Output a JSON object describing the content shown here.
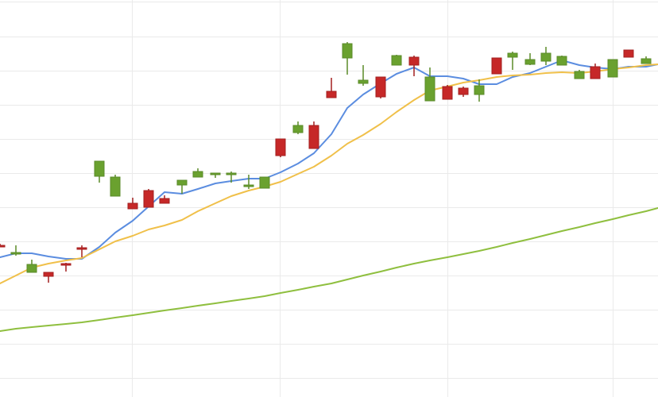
{
  "chart_data": {
    "type": "candlestick",
    "title": "",
    "xlabel": "",
    "ylabel": "",
    "ylim": [
      0,
      500
    ],
    "grid": true,
    "colors": {
      "up": "#6aa12f",
      "down": "#c62828",
      "ma_fast": "#5b8de0",
      "ma_medium": "#f0c04a",
      "ma_slow": "#8fbf3f",
      "grid": "#eaeaea"
    },
    "candles": [
      {
        "x": 0,
        "open": 191,
        "close": 189,
        "high": 193,
        "low": 189
      },
      {
        "x": 20,
        "open": 180,
        "close": 182,
        "high": 191,
        "low": 178
      },
      {
        "x": 40,
        "open": 157,
        "close": 167,
        "high": 173,
        "low": 157
      },
      {
        "x": 61,
        "open": 157,
        "close": 152,
        "high": 157,
        "low": 144
      },
      {
        "x": 83,
        "open": 168,
        "close": 166,
        "high": 169,
        "low": 158
      },
      {
        "x": 103,
        "open": 188,
        "close": 186,
        "high": 191,
        "low": 176
      },
      {
        "x": 125,
        "open": 278,
        "close": 297,
        "high": 297,
        "low": 270
      },
      {
        "x": 145,
        "open": 253,
        "close": 277,
        "high": 280,
        "low": 253
      },
      {
        "x": 167,
        "open": 244,
        "close": 237,
        "high": 251,
        "low": 237
      },
      {
        "x": 187,
        "open": 260,
        "close": 239,
        "high": 262,
        "low": 239
      },
      {
        "x": 207,
        "open": 250,
        "close": 244,
        "high": 254,
        "low": 244
      },
      {
        "x": 229,
        "open": 267,
        "close": 273,
        "high": 273,
        "low": 256
      },
      {
        "x": 249,
        "open": 277,
        "close": 284,
        "high": 288,
        "low": 277
      },
      {
        "x": 271,
        "open": 280,
        "close": 282,
        "high": 282,
        "low": 276
      },
      {
        "x": 291,
        "open": 280,
        "close": 282,
        "high": 284,
        "low": 270
      },
      {
        "x": 313,
        "open": 265,
        "close": 267,
        "high": 280,
        "low": 262
      },
      {
        "x": 333,
        "open": 263,
        "close": 277,
        "high": 277,
        "low": 263
      },
      {
        "x": 353,
        "open": 325,
        "close": 304,
        "high": 325,
        "low": 302
      },
      {
        "x": 375,
        "open": 333,
        "close": 342,
        "high": 347,
        "low": 331
      },
      {
        "x": 395,
        "open": 342,
        "close": 313,
        "high": 347,
        "low": 313
      },
      {
        "x": 417,
        "open": 385,
        "close": 377,
        "high": 402,
        "low": 377
      },
      {
        "x": 437,
        "open": 427,
        "close": 445,
        "high": 447,
        "low": 406
      },
      {
        "x": 457,
        "open": 395,
        "close": 399,
        "high": 418,
        "low": 392
      },
      {
        "x": 479,
        "open": 403,
        "close": 378,
        "high": 403,
        "low": 376
      },
      {
        "x": 499,
        "open": 418,
        "close": 430,
        "high": 431,
        "low": 418
      },
      {
        "x": 521,
        "open": 428,
        "close": 418,
        "high": 430,
        "low": 404
      },
      {
        "x": 541,
        "open": 373,
        "close": 403,
        "high": 415,
        "low": 373
      },
      {
        "x": 563,
        "open": 391,
        "close": 375,
        "high": 393,
        "low": 375
      },
      {
        "x": 583,
        "open": 389,
        "close": 381,
        "high": 391,
        "low": 378
      },
      {
        "x": 603,
        "open": 381,
        "close": 392,
        "high": 400,
        "low": 372
      },
      {
        "x": 625,
        "open": 427,
        "close": 407,
        "high": 427,
        "low": 407
      },
      {
        "x": 645,
        "open": 428,
        "close": 433,
        "high": 435,
        "low": 412
      },
      {
        "x": 667,
        "open": 419,
        "close": 425,
        "high": 433,
        "low": 418
      },
      {
        "x": 687,
        "open": 423,
        "close": 433,
        "high": 441,
        "low": 418
      },
      {
        "x": 707,
        "open": 418,
        "close": 429,
        "high": 430,
        "low": 418
      },
      {
        "x": 729,
        "open": 401,
        "close": 410,
        "high": 412,
        "low": 401
      },
      {
        "x": 749,
        "open": 416,
        "close": 401,
        "high": 420,
        "low": 401
      },
      {
        "x": 771,
        "open": 403,
        "close": 425,
        "high": 425,
        "low": 403
      },
      {
        "x": 791,
        "open": 437,
        "close": 428,
        "high": 437,
        "low": 428
      },
      {
        "x": 813,
        "open": 420,
        "close": 426,
        "high": 429,
        "low": 420
      }
    ],
    "series": [
      {
        "key": "ma_fast",
        "x": [
          0,
          20,
          40,
          61,
          83,
          103,
          125,
          145,
          167,
          187,
          207,
          229,
          249,
          271,
          291,
          313,
          333,
          353,
          375,
          395,
          417,
          437,
          457,
          479,
          499,
          521,
          541,
          563,
          583,
          603,
          625,
          645,
          667,
          687,
          707,
          729,
          749,
          771,
          791,
          813,
          828
        ],
        "values": [
          176,
          181,
          181,
          177,
          174,
          174,
          189,
          207,
          222,
          240,
          258,
          256,
          262,
          269,
          272,
          275,
          275,
          283,
          294,
          307,
          331,
          364,
          381,
          395,
          407,
          415,
          404,
          404,
          401,
          394,
          394,
          403,
          408,
          416,
          424,
          418,
          415,
          413,
          416,
          416,
          419
        ]
      },
      {
        "key": "ma_medium",
        "x": [
          0,
          20,
          40,
          61,
          83,
          103,
          125,
          145,
          167,
          187,
          207,
          229,
          249,
          271,
          291,
          313,
          333,
          353,
          375,
          395,
          417,
          437,
          457,
          479,
          499,
          521,
          541,
          563,
          583,
          603,
          625,
          645,
          667,
          687,
          707,
          729,
          749,
          771,
          791,
          813,
          828
        ],
        "values": [
          143,
          153,
          163,
          168,
          172,
          175,
          186,
          196,
          203,
          211,
          216,
          223,
          234,
          244,
          253,
          260,
          265,
          271,
          281,
          290,
          304,
          319,
          330,
          344,
          359,
          374,
          386,
          391,
          396,
          399,
          403,
          405,
          406,
          408,
          409,
          408,
          410,
          413,
          415,
          418,
          419
        ]
      },
      {
        "key": "ma_slow",
        "x": [
          0,
          20,
          40,
          61,
          83,
          103,
          125,
          145,
          167,
          187,
          207,
          229,
          249,
          271,
          291,
          313,
          333,
          353,
          375,
          395,
          417,
          437,
          457,
          479,
          499,
          521,
          541,
          563,
          583,
          603,
          625,
          645,
          667,
          687,
          707,
          729,
          749,
          771,
          791,
          813,
          828
        ],
        "values": [
          83,
          86,
          88,
          90,
          92,
          94,
          97,
          100,
          103,
          106,
          109,
          112,
          115,
          118,
          121,
          124,
          127,
          131,
          135,
          139,
          143,
          148,
          153,
          158,
          163,
          168,
          172,
          176,
          180,
          184,
          189,
          194,
          199,
          204,
          209,
          214,
          219,
          224,
          229,
          234,
          238
        ]
      }
    ]
  }
}
